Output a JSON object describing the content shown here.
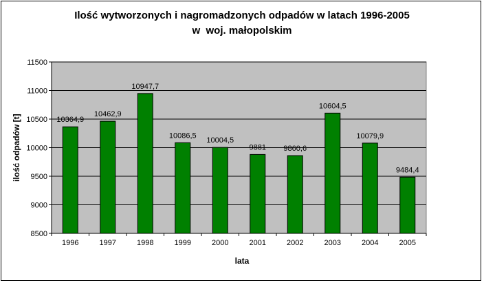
{
  "chart_data": {
    "type": "bar",
    "title_line1": "Ilość wytworzonych i nagromadzonych odpadów w latach 1996-2005",
    "title_line2": "w  woj. małopolskim",
    "xlabel": "lata",
    "ylabel": "ilość odpadów [t]",
    "categories": [
      "1996",
      "1997",
      "1998",
      "1999",
      "2000",
      "2001",
      "2002",
      "2003",
      "2004",
      "2005"
    ],
    "values": [
      10364.9,
      10462.9,
      10947.7,
      10086.5,
      10004.5,
      9881,
      9860.6,
      10604.5,
      10079.9,
      9484.4
    ],
    "data_labels": [
      "10364,9",
      "10462,9",
      "10947,7",
      "10086,5",
      "10004,5",
      "9881",
      "9860,6",
      "10604,5",
      "10079,9",
      "9484,4"
    ],
    "ylim": [
      8500,
      11500
    ],
    "yticks": [
      8500,
      9000,
      9500,
      10000,
      10500,
      11000,
      11500
    ],
    "grid": true,
    "legend": "none",
    "colors": {
      "bar": "#008000",
      "plot_background": "#c0c0c0",
      "gridline": "#000000"
    }
  }
}
